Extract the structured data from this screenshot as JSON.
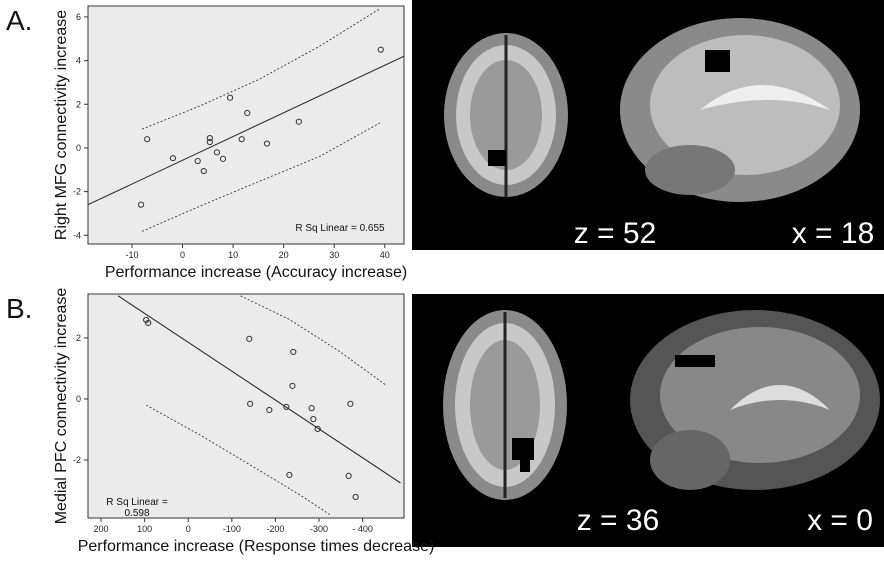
{
  "panel_labels": [
    "A.",
    "B."
  ],
  "brain_labels": [
    [
      "z = 52",
      "x = 18"
    ],
    [
      "z = 36",
      "x = 0"
    ]
  ],
  "chart_data": [
    {
      "type": "scatter",
      "x_label": "Performance increase (Accuracy increase)",
      "y_label": "Right MFG connectivity increase",
      "annotation": [
        "R Sq Linear = 0.655"
      ],
      "x": [
        -8.2,
        -7.0,
        -1.9,
        3.0,
        4.2,
        5.4,
        5.4,
        6.8,
        8.0,
        9.4,
        11.7,
        12.8,
        16.7,
        23.0,
        39.2
      ],
      "y": [
        -2.6,
        0.4,
        -0.47,
        -0.6,
        -1.06,
        0.45,
        0.27,
        -0.2,
        -0.5,
        2.3,
        0.4,
        1.6,
        0.2,
        1.2,
        4.5
      ],
      "xlim": [
        -18.7,
        43.8
      ],
      "ylim": [
        -4.4,
        6.5
      ],
      "xticks": [
        -10,
        0,
        10,
        20,
        30,
        40
      ],
      "yticks": [
        -4,
        -2,
        0,
        2,
        4,
        6
      ],
      "fit": {
        "x": [
          -18.7,
          43.8
        ],
        "y": [
          -2.6,
          4.2
        ]
      },
      "ci_upper": {
        "x": [
          -8.0,
          3.4,
          15.3,
          27.2,
          39.0
        ],
        "y": [
          0.86,
          1.92,
          3.16,
          4.67,
          6.37
        ]
      },
      "ci_lower": {
        "x": [
          -8.0,
          3.4,
          15.3,
          27.2,
          39.0
        ],
        "y": [
          -3.82,
          -2.67,
          -1.52,
          -0.38,
          1.14
        ]
      }
    },
    {
      "type": "scatter",
      "x_label": "Performance increase (Response times decrease)",
      "y_label": "Medial PFC connectivity increase",
      "annotation": [
        "R Sq Linear =",
        "0.598"
      ],
      "x": [
        96.6,
        92,
        -140,
        -142,
        -186,
        -225,
        -241,
        -239,
        -283,
        -287,
        -297,
        -232,
        -368,
        -372,
        -384
      ],
      "y": [
        2.59,
        2.49,
        1.97,
        -0.16,
        -0.36,
        -0.26,
        1.54,
        0.43,
        -0.3,
        -0.66,
        -0.98,
        -2.49,
        -2.52,
        -0.16,
        -3.21
      ],
      "xlim": [
        230,
        -495
      ],
      "ylim": [
        -3.9,
        3.44
      ],
      "xticks": [
        200,
        100,
        0,
        -100,
        -200,
        -300,
        {
          "value": -400,
          "label": "- 400"
        }
      ],
      "yticks": [
        -2,
        0,
        2
      ],
      "fit": {
        "x": [
          161,
          -487
        ],
        "y": [
          3.38,
          -2.75
        ]
      },
      "ci_upper": {
        "x": [
          -120,
          -234,
          -349,
          -453
        ],
        "y": [
          3.38,
          2.59,
          1.54,
          0.46
        ]
      },
      "ci_lower": {
        "x": [
          96.6,
          -27,
          -142,
          -257,
          -326
        ],
        "y": [
          -0.2,
          -1.18,
          -2.16,
          -3.15,
          -3.8
        ]
      }
    }
  ]
}
